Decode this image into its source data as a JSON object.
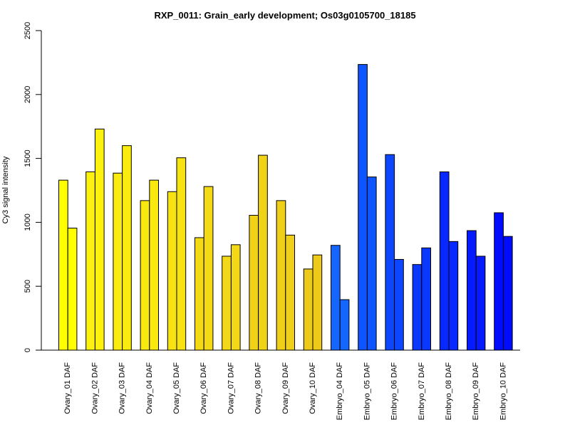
{
  "chart_data": {
    "type": "bar",
    "title": "RXP_0011: Grain_early development; Os03g0105700_18185",
    "xlabel": "",
    "ylabel": "Cy3 signal intensity",
    "ylim": [
      0,
      2500
    ],
    "yticks": [
      0,
      500,
      1000,
      1500,
      2000,
      2500
    ],
    "grid": false,
    "legend": "none",
    "categories": [
      "Ovary_01 DAF",
      "Ovary_02 DAF",
      "Ovary_03 DAF",
      "Ovary_04 DAF",
      "Ovary_05 DAF",
      "Ovary_06 DAF",
      "Ovary_07 DAF",
      "Ovary_08 DAF",
      "Ovary_09 DAF",
      "Ovary_10 DAF",
      "Embryo_04 DAF",
      "Embryo_05 DAF",
      "Embryo_06 DAF",
      "Embryo_07 DAF",
      "Embryo_08 DAF",
      "Embryo_09 DAF",
      "Embryo_10 DAF"
    ],
    "series": [
      {
        "values": [
          1330,
          1395,
          1385,
          1170,
          1240,
          880,
          735,
          1055,
          1170,
          635,
          820,
          2235,
          1530,
          670,
          1395,
          935,
          1075
        ]
      },
      {
        "values": [
          955,
          1730,
          1600,
          1330,
          1505,
          1280,
          825,
          1525,
          900,
          745,
          395,
          1355,
          710,
          800,
          850,
          735,
          890
        ]
      }
    ],
    "bar_colors": [
      "#FFFF00",
      "#FCF20E",
      "#FAEC0E",
      "#F9E90F",
      "#F6E311",
      "#F3DA14",
      "#F2D816",
      "#F0D316",
      "#EFCF18",
      "#EDCA1A",
      "#1466FF",
      "#0F55FF",
      "#0C46FF",
      "#0A38FF",
      "#0728FF",
      "#051AFF",
      "#000CFF"
    ]
  }
}
